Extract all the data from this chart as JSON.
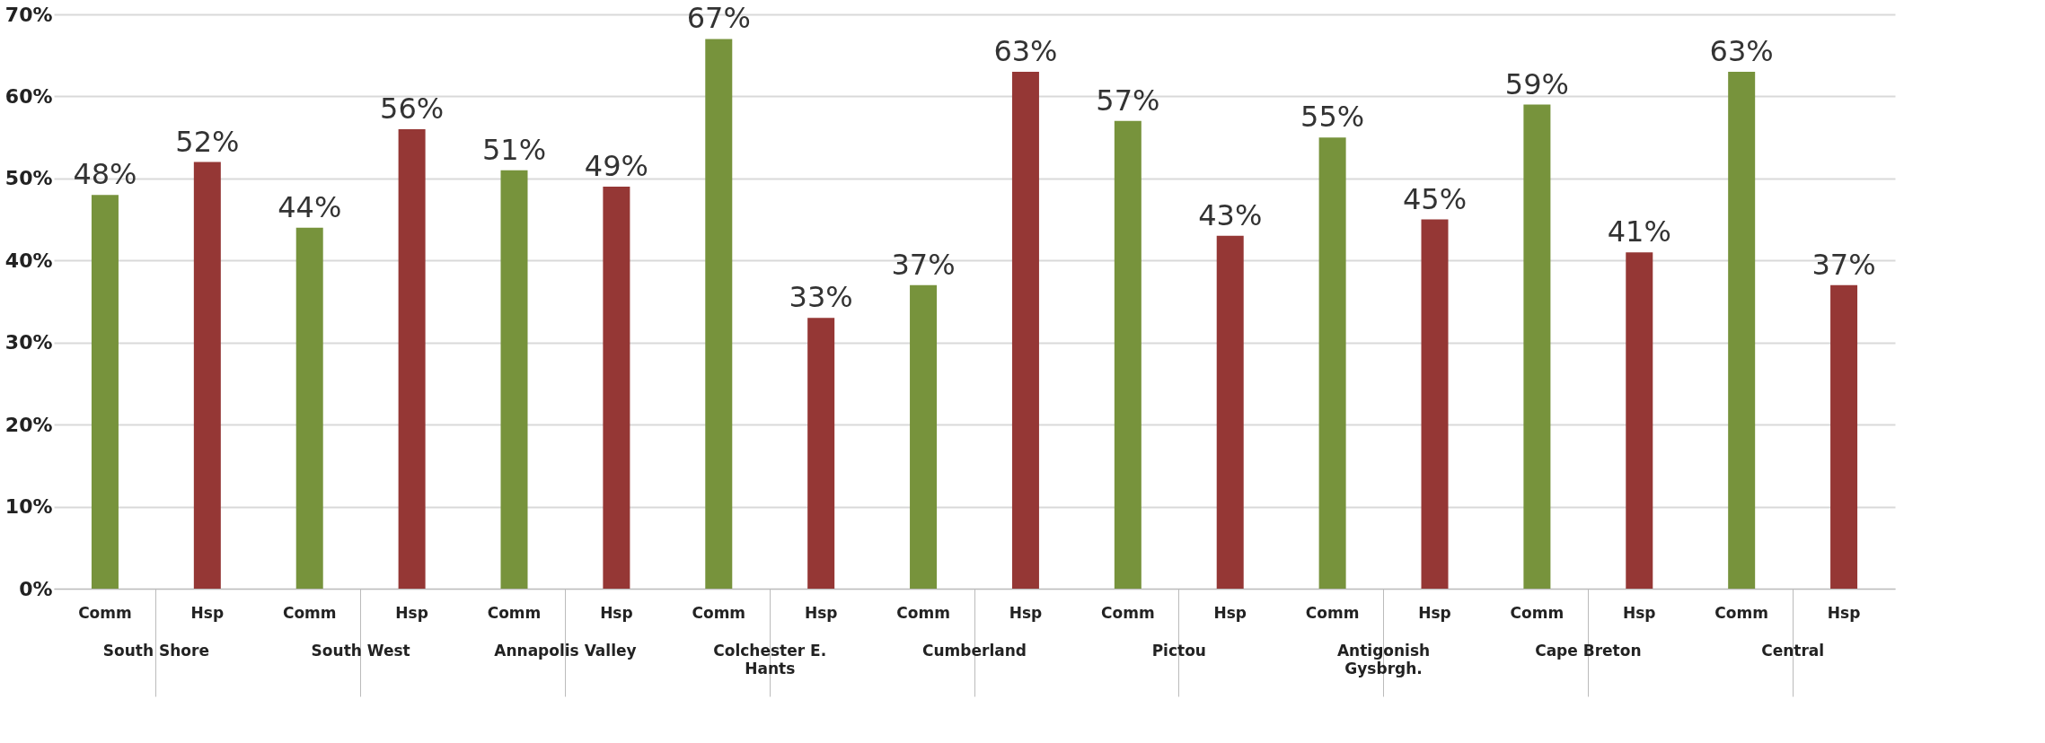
{
  "chart_data": {
    "type": "bar",
    "categories": [
      "South Shore",
      "South West",
      "Annapolis Valley",
      "Colchester E. Hants",
      "Cumberland",
      "Pictou",
      "Antigonish Gysbrgh.",
      "Cape Breton",
      "Central"
    ],
    "series": [
      {
        "name": "Comm",
        "color": "#77933c",
        "values": [
          48,
          44,
          51,
          67,
          37,
          57,
          55,
          59,
          63
        ],
        "value_labels": [
          "48%",
          "44%",
          "51%",
          "67%",
          "37%",
          "57%",
          "55%",
          "59%",
          "63%"
        ]
      },
      {
        "name": "Hsp",
        "color": "#953735",
        "values": [
          52,
          56,
          49,
          33,
          63,
          43,
          45,
          41,
          37
        ],
        "value_labels": [
          "52%",
          "56%",
          "49%",
          "33%",
          "63%",
          "43%",
          "45%",
          "41%",
          "37%"
        ]
      }
    ],
    "ylim": [
      0,
      70
    ],
    "yticks": [
      {
        "value": 0,
        "label": "0%"
      },
      {
        "value": 10,
        "label": "10%"
      },
      {
        "value": 20,
        "label": "20%"
      },
      {
        "value": 30,
        "label": "30%"
      },
      {
        "value": 40,
        "label": "40%"
      },
      {
        "value": 50,
        "label": "50%"
      },
      {
        "value": 60,
        "label": "60%"
      },
      {
        "value": 70,
        "label": "70%"
      }
    ],
    "grid": "y",
    "legend": false
  }
}
